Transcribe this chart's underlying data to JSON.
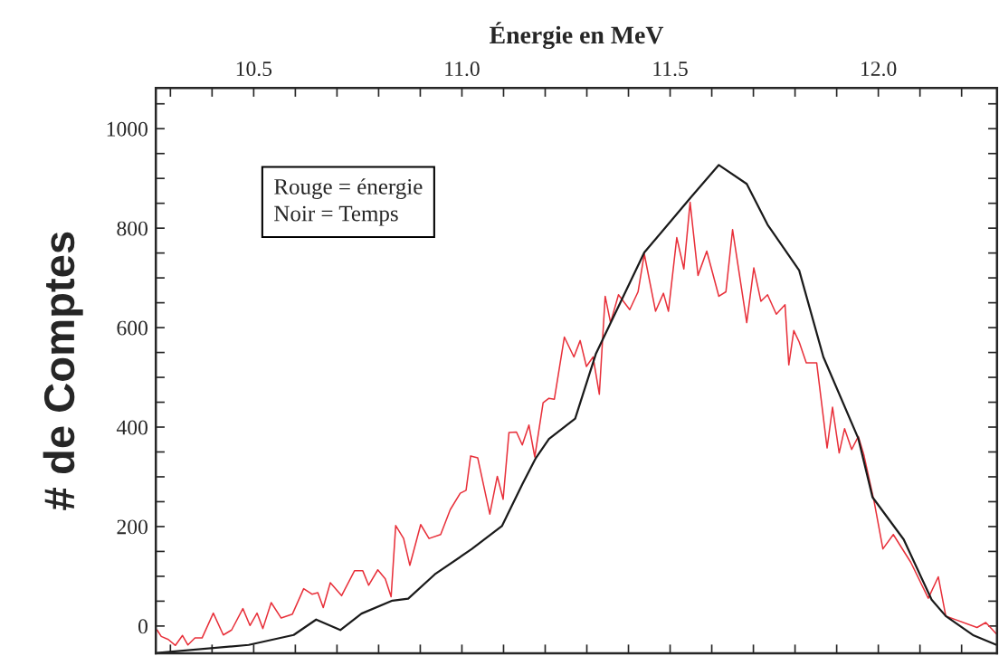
{
  "chart_data": {
    "type": "line",
    "xlabel": "Énergie en MeV",
    "ylabel": "# de Comptes",
    "annotations": [
      "Rouge = énergie\nNoir = Temps"
    ],
    "xlim": [
      10.265,
      12.285
    ],
    "ylim": [
      -55,
      1082
    ],
    "xticks": [
      {
        "value": 10.3,
        "label": null
      },
      {
        "value": 10.4,
        "label": null
      },
      10.5,
      {
        "value": 10.6,
        "label": null
      },
      {
        "value": 10.7,
        "label": null
      },
      {
        "value": 10.8,
        "label": null
      },
      {
        "value": 10.9,
        "label": null
      },
      {
        "value": 11,
        "label": "11.0"
      },
      {
        "value": 11.1,
        "label": null
      },
      {
        "value": 11.2,
        "label": null
      },
      {
        "value": 11.3,
        "label": null
      },
      {
        "value": 11.4,
        "label": null
      },
      11.5,
      {
        "value": 11.6,
        "label": null
      },
      {
        "value": 11.7,
        "label": null
      },
      {
        "value": 11.8,
        "label": null
      },
      {
        "value": 11.9,
        "label": null
      },
      {
        "value": 12,
        "label": "12.0"
      },
      {
        "value": 12.1,
        "label": null
      },
      {
        "value": 12.2,
        "label": null
      }
    ],
    "yticks": [
      0,
      {
        "value": 50,
        "label": null
      },
      {
        "value": 100,
        "label": null
      },
      {
        "value": 150,
        "label": null
      },
      200,
      {
        "value": 250,
        "label": null
      },
      {
        "value": 300,
        "label": null
      },
      {
        "value": 350,
        "label": null
      },
      400,
      {
        "value": 450,
        "label": null
      },
      {
        "value": 500,
        "label": null
      },
      {
        "value": 550,
        "label": null
      },
      600,
      {
        "value": 650,
        "label": null
      },
      {
        "value": 700,
        "label": null
      },
      {
        "value": 750,
        "label": null
      },
      800,
      {
        "value": 850,
        "label": null
      },
      {
        "value": 900,
        "label": null
      },
      {
        "value": 950,
        "label": null
      },
      1000,
      {
        "value": 1050,
        "label": null
      }
    ],
    "grid": false,
    "legend": false,
    "line_style": "solid",
    "marker": "none",
    "series": [
      {
        "color": "#e8303a",
        "x": [
          10.268,
          10.278,
          10.295,
          10.312,
          10.329,
          10.342,
          10.359,
          10.376,
          10.403,
          10.427,
          10.447,
          10.474,
          10.491,
          10.508,
          10.522,
          10.542,
          10.566,
          10.593,
          10.62,
          10.64,
          10.654,
          10.667,
          10.684,
          10.711,
          10.742,
          10.762,
          10.776,
          10.798,
          10.816,
          10.83,
          10.841,
          10.86,
          10.875,
          10.901,
          10.921,
          10.949,
          10.972,
          10.996,
          11.01,
          11.021,
          11.038,
          11.067,
          11.085,
          11.099,
          11.113,
          11.131,
          11.145,
          11.161,
          11.175,
          11.195,
          11.209,
          11.222,
          11.246,
          11.269,
          11.284,
          11.299,
          11.315,
          11.33,
          11.344,
          11.357,
          11.376,
          11.403,
          11.423,
          11.438,
          11.465,
          11.484,
          11.496,
          11.516,
          11.533,
          11.548,
          11.567,
          11.588,
          11.617,
          11.634,
          11.65,
          11.684,
          11.701,
          11.718,
          11.734,
          11.755,
          11.776,
          11.785,
          11.797,
          11.81,
          11.827,
          11.852,
          11.877,
          11.89,
          11.906,
          11.919,
          11.936,
          11.952,
          11.965,
          11.99,
          12.011,
          12.036,
          12.078,
          12.12,
          12.144,
          12.162,
          12.237,
          12.258,
          12.284
        ],
        "values": [
          -8,
          -21,
          -27,
          -39,
          -19,
          -38,
          -24,
          -24,
          26,
          -18,
          -8,
          35,
          1,
          26,
          -5,
          47,
          16,
          24,
          75,
          64,
          67,
          37,
          87,
          61,
          111,
          111,
          82,
          113,
          95,
          59,
          202,
          176,
          122,
          204,
          176,
          184,
          234,
          267,
          273,
          342,
          338,
          225,
          301,
          255,
          389,
          390,
          364,
          404,
          340,
          449,
          458,
          456,
          581,
          541,
          574,
          522,
          541,
          466,
          663,
          610,
          666,
          636,
          672,
          748,
          633,
          669,
          633,
          781,
          718,
          852,
          705,
          754,
          663,
          672,
          797,
          610,
          720,
          653,
          666,
          627,
          646,
          525,
          594,
          571,
          529,
          529,
          358,
          440,
          348,
          397,
          355,
          381,
          345,
          250,
          155,
          184,
          128,
          56,
          99,
          20,
          -3,
          7,
          -16
        ]
      },
      {
        "color": "#1a1a1a",
        "x": [
          10.268,
          10.488,
          10.596,
          10.65,
          10.708,
          10.759,
          10.833,
          10.871,
          10.935,
          11.024,
          11.096,
          11.145,
          11.177,
          11.209,
          11.272,
          11.322,
          11.438,
          11.55,
          11.617,
          11.684,
          11.734,
          11.81,
          11.868,
          11.952,
          11.986,
          12.061,
          12.128,
          12.162,
          12.229,
          12.284
        ],
        "values": [
          -54,
          -38,
          -18,
          13,
          -8,
          25,
          51,
          55,
          104,
          155,
          201,
          285,
          337,
          376,
          417,
          548,
          751,
          862,
          927,
          889,
          807,
          715,
          541,
          377,
          259,
          174,
          53,
          20,
          -19,
          -38
        ]
      }
    ]
  }
}
